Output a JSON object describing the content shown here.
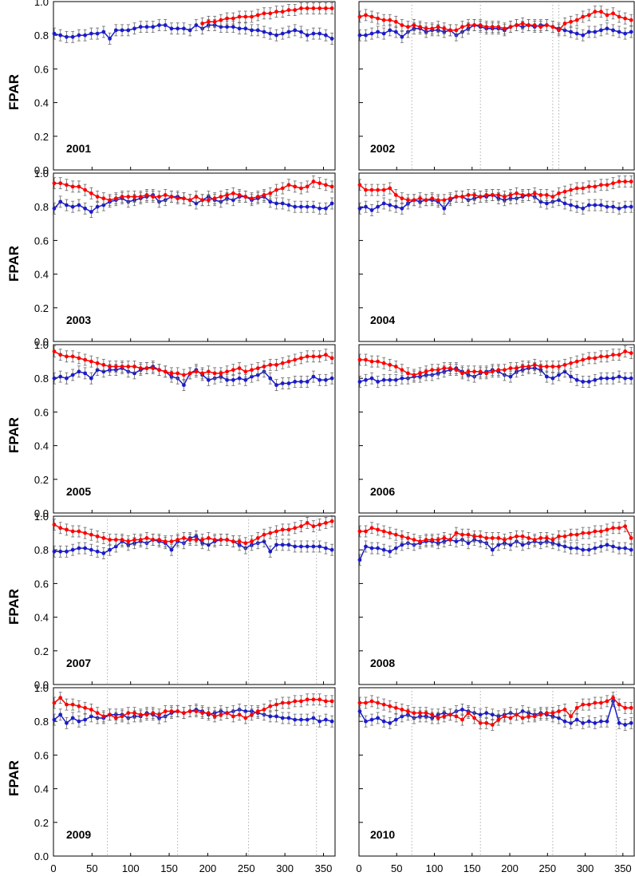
{
  "chart_data": {
    "type": "line",
    "ylabel": "FPAR",
    "ylim": [
      0.0,
      1.0
    ],
    "yticks": [
      "0.0",
      "0.2",
      "0.4",
      "0.6",
      "0.8",
      "1.0"
    ],
    "xlim": [
      0,
      365
    ],
    "xticks": [
      "0",
      "50",
      "100",
      "150",
      "200",
      "250",
      "300",
      "350"
    ],
    "x": [
      1,
      9,
      17,
      25,
      33,
      41,
      49,
      57,
      65,
      73,
      81,
      89,
      97,
      105,
      113,
      121,
      129,
      137,
      145,
      153,
      161,
      169,
      177,
      185,
      193,
      201,
      209,
      217,
      225,
      233,
      241,
      249,
      257,
      265,
      273,
      281,
      289,
      297,
      305,
      313,
      321,
      329,
      337,
      345,
      353,
      361
    ],
    "colors": {
      "red": "#ff0000",
      "blue": "#1c1cc8",
      "errorbar": "#666666",
      "guide": "#9a9a9a"
    },
    "panels": [
      {
        "year": "2001",
        "col": 0,
        "row": 0,
        "guides": [],
        "red_start": 24,
        "red": [
          0.87,
          0.88,
          0.88,
          0.89,
          0.9,
          0.9,
          0.91,
          0.91,
          0.91,
          0.92,
          0.93,
          0.93,
          0.94,
          0.94,
          0.95,
          0.95,
          0.96,
          0.96,
          0.96,
          0.96,
          0.96,
          0.96
        ],
        "blue": [
          0.81,
          0.8,
          0.79,
          0.79,
          0.8,
          0.8,
          0.81,
          0.81,
          0.82,
          0.78,
          0.83,
          0.83,
          0.83,
          0.84,
          0.85,
          0.85,
          0.85,
          0.86,
          0.86,
          0.84,
          0.84,
          0.84,
          0.83,
          0.86,
          0.84,
          0.86,
          0.86,
          0.85,
          0.85,
          0.85,
          0.84,
          0.84,
          0.83,
          0.83,
          0.82,
          0.81,
          0.8,
          0.81,
          0.82,
          0.83,
          0.82,
          0.8,
          0.81,
          0.81,
          0.8,
          0.78
        ]
      },
      {
        "year": "2002",
        "col": 1,
        "row": 0,
        "guides": [
          70,
          161,
          257,
          265
        ],
        "red_start": 0,
        "red": [
          0.91,
          0.92,
          0.91,
          0.9,
          0.89,
          0.89,
          0.88,
          0.86,
          0.85,
          0.86,
          0.85,
          0.84,
          0.84,
          0.85,
          0.84,
          0.83,
          0.83,
          0.85,
          0.86,
          0.86,
          0.86,
          0.85,
          0.85,
          0.85,
          0.84,
          0.85,
          0.86,
          0.87,
          0.86,
          0.86,
          0.85,
          0.86,
          0.85,
          0.83,
          0.87,
          0.88,
          0.89,
          0.91,
          0.92,
          0.94,
          0.94,
          0.92,
          0.93,
          0.91,
          0.9,
          0.89
        ],
        "blue": [
          0.8,
          0.8,
          0.81,
          0.82,
          0.81,
          0.83,
          0.82,
          0.79,
          0.82,
          0.84,
          0.84,
          0.82,
          0.83,
          0.83,
          0.82,
          0.83,
          0.8,
          0.82,
          0.84,
          0.86,
          0.85,
          0.84,
          0.84,
          0.84,
          0.83,
          0.85,
          0.86,
          0.85,
          0.86,
          0.85,
          0.86,
          0.86,
          0.85,
          0.84,
          0.83,
          0.82,
          0.81,
          0.8,
          0.82,
          0.82,
          0.83,
          0.84,
          0.83,
          0.82,
          0.81,
          0.82
        ]
      },
      {
        "year": "2003",
        "col": 0,
        "row": 1,
        "guides": [],
        "red_start": 0,
        "red": [
          0.94,
          0.94,
          0.93,
          0.92,
          0.92,
          0.9,
          0.88,
          0.86,
          0.85,
          0.84,
          0.85,
          0.86,
          0.86,
          0.86,
          0.86,
          0.87,
          0.86,
          0.86,
          0.87,
          0.86,
          0.85,
          0.85,
          0.84,
          0.86,
          0.84,
          0.84,
          0.85,
          0.86,
          0.87,
          0.88,
          0.87,
          0.86,
          0.85,
          0.86,
          0.87,
          0.88,
          0.9,
          0.91,
          0.93,
          0.92,
          0.91,
          0.92,
          0.95,
          0.94,
          0.93,
          0.92
        ],
        "blue": [
          0.79,
          0.83,
          0.81,
          0.8,
          0.81,
          0.79,
          0.77,
          0.8,
          0.81,
          0.83,
          0.84,
          0.85,
          0.83,
          0.84,
          0.85,
          0.86,
          0.87,
          0.83,
          0.84,
          0.86,
          0.86,
          0.85,
          0.84,
          0.82,
          0.84,
          0.86,
          0.84,
          0.83,
          0.85,
          0.84,
          0.86,
          0.86,
          0.84,
          0.85,
          0.86,
          0.83,
          0.82,
          0.82,
          0.81,
          0.8,
          0.8,
          0.8,
          0.8,
          0.79,
          0.79,
          0.82
        ]
      },
      {
        "year": "2004",
        "col": 1,
        "row": 1,
        "guides": [],
        "red_start": 0,
        "red": [
          0.93,
          0.9,
          0.9,
          0.9,
          0.9,
          0.91,
          0.87,
          0.85,
          0.84,
          0.84,
          0.85,
          0.84,
          0.85,
          0.84,
          0.84,
          0.85,
          0.86,
          0.86,
          0.87,
          0.87,
          0.86,
          0.87,
          0.87,
          0.87,
          0.86,
          0.87,
          0.88,
          0.87,
          0.87,
          0.88,
          0.87,
          0.87,
          0.86,
          0.88,
          0.89,
          0.9,
          0.91,
          0.91,
          0.92,
          0.92,
          0.93,
          0.93,
          0.94,
          0.95,
          0.95,
          0.95
        ],
        "blue": [
          0.79,
          0.8,
          0.78,
          0.8,
          0.82,
          0.81,
          0.8,
          0.79,
          0.82,
          0.84,
          0.83,
          0.84,
          0.84,
          0.83,
          0.79,
          0.84,
          0.86,
          0.86,
          0.84,
          0.85,
          0.86,
          0.86,
          0.87,
          0.85,
          0.84,
          0.85,
          0.85,
          0.86,
          0.87,
          0.86,
          0.83,
          0.82,
          0.83,
          0.84,
          0.82,
          0.81,
          0.8,
          0.79,
          0.81,
          0.81,
          0.81,
          0.8,
          0.8,
          0.79,
          0.8,
          0.8
        ]
      },
      {
        "year": "2005",
        "col": 0,
        "row": 2,
        "guides": [],
        "red_start": 0,
        "red": [
          0.96,
          0.94,
          0.93,
          0.93,
          0.92,
          0.91,
          0.9,
          0.89,
          0.88,
          0.87,
          0.87,
          0.87,
          0.87,
          0.87,
          0.86,
          0.86,
          0.86,
          0.85,
          0.84,
          0.83,
          0.83,
          0.82,
          0.83,
          0.84,
          0.83,
          0.84,
          0.83,
          0.83,
          0.84,
          0.85,
          0.86,
          0.84,
          0.85,
          0.86,
          0.87,
          0.88,
          0.88,
          0.89,
          0.9,
          0.91,
          0.92,
          0.93,
          0.93,
          0.93,
          0.94,
          0.92
        ],
        "blue": [
          0.8,
          0.81,
          0.8,
          0.82,
          0.84,
          0.83,
          0.8,
          0.85,
          0.84,
          0.85,
          0.85,
          0.86,
          0.84,
          0.83,
          0.85,
          0.86,
          0.87,
          0.85,
          0.84,
          0.81,
          0.8,
          0.76,
          0.83,
          0.85,
          0.82,
          0.79,
          0.8,
          0.81,
          0.79,
          0.79,
          0.8,
          0.79,
          0.81,
          0.82,
          0.84,
          0.8,
          0.76,
          0.77,
          0.77,
          0.78,
          0.78,
          0.78,
          0.81,
          0.79,
          0.79,
          0.8
        ]
      },
      {
        "year": "2006",
        "col": 1,
        "row": 2,
        "guides": [],
        "red_start": 0,
        "red": [
          0.91,
          0.91,
          0.9,
          0.9,
          0.89,
          0.88,
          0.87,
          0.85,
          0.83,
          0.82,
          0.83,
          0.84,
          0.85,
          0.85,
          0.86,
          0.86,
          0.85,
          0.83,
          0.84,
          0.84,
          0.84,
          0.83,
          0.84,
          0.85,
          0.85,
          0.86,
          0.86,
          0.87,
          0.87,
          0.88,
          0.87,
          0.87,
          0.87,
          0.87,
          0.88,
          0.89,
          0.9,
          0.91,
          0.92,
          0.92,
          0.93,
          0.93,
          0.94,
          0.94,
          0.96,
          0.95
        ],
        "blue": [
          0.78,
          0.79,
          0.8,
          0.78,
          0.79,
          0.79,
          0.79,
          0.8,
          0.8,
          0.81,
          0.81,
          0.82,
          0.82,
          0.83,
          0.84,
          0.85,
          0.86,
          0.84,
          0.82,
          0.81,
          0.83,
          0.84,
          0.85,
          0.84,
          0.82,
          0.81,
          0.84,
          0.85,
          0.86,
          0.86,
          0.85,
          0.81,
          0.8,
          0.82,
          0.84,
          0.81,
          0.79,
          0.78,
          0.78,
          0.79,
          0.8,
          0.8,
          0.8,
          0.81,
          0.8,
          0.8
        ]
      },
      {
        "year": "2007",
        "col": 0,
        "row": 3,
        "guides": [
          70,
          161,
          253,
          341
        ],
        "red_start": 0,
        "red": [
          0.95,
          0.93,
          0.92,
          0.91,
          0.91,
          0.9,
          0.89,
          0.88,
          0.87,
          0.86,
          0.86,
          0.86,
          0.85,
          0.86,
          0.86,
          0.87,
          0.86,
          0.86,
          0.85,
          0.85,
          0.86,
          0.87,
          0.86,
          0.86,
          0.86,
          0.87,
          0.86,
          0.86,
          0.86,
          0.85,
          0.85,
          0.84,
          0.85,
          0.87,
          0.89,
          0.9,
          0.91,
          0.92,
          0.92,
          0.93,
          0.94,
          0.96,
          0.94,
          0.95,
          0.96,
          0.97
        ],
        "blue": [
          0.79,
          0.79,
          0.79,
          0.8,
          0.81,
          0.81,
          0.8,
          0.79,
          0.78,
          0.8,
          0.82,
          0.85,
          0.83,
          0.84,
          0.85,
          0.84,
          0.86,
          0.85,
          0.84,
          0.8,
          0.85,
          0.84,
          0.87,
          0.88,
          0.84,
          0.83,
          0.85,
          0.86,
          0.86,
          0.85,
          0.83,
          0.81,
          0.83,
          0.84,
          0.85,
          0.79,
          0.83,
          0.83,
          0.83,
          0.82,
          0.82,
          0.82,
          0.82,
          0.82,
          0.81,
          0.8
        ]
      },
      {
        "year": "2008",
        "col": 1,
        "row": 3,
        "guides": [],
        "red_start": 0,
        "red": [
          0.91,
          0.91,
          0.93,
          0.92,
          0.91,
          0.9,
          0.89,
          0.88,
          0.87,
          0.86,
          0.85,
          0.86,
          0.86,
          0.86,
          0.87,
          0.86,
          0.9,
          0.89,
          0.89,
          0.88,
          0.88,
          0.87,
          0.87,
          0.87,
          0.86,
          0.87,
          0.88,
          0.88,
          0.87,
          0.86,
          0.87,
          0.87,
          0.86,
          0.88,
          0.88,
          0.89,
          0.89,
          0.9,
          0.9,
          0.91,
          0.91,
          0.92,
          0.93,
          0.93,
          0.94,
          0.87
        ],
        "blue": [
          0.74,
          0.82,
          0.81,
          0.81,
          0.8,
          0.79,
          0.81,
          0.83,
          0.84,
          0.83,
          0.84,
          0.85,
          0.85,
          0.84,
          0.85,
          0.86,
          0.85,
          0.86,
          0.84,
          0.86,
          0.85,
          0.84,
          0.8,
          0.83,
          0.84,
          0.83,
          0.85,
          0.83,
          0.84,
          0.85,
          0.84,
          0.85,
          0.84,
          0.83,
          0.82,
          0.81,
          0.81,
          0.8,
          0.8,
          0.81,
          0.82,
          0.83,
          0.82,
          0.81,
          0.81,
          0.8
        ]
      },
      {
        "year": "2009",
        "col": 0,
        "row": 4,
        "guides": [
          70,
          161,
          253,
          341
        ],
        "red_start": 0,
        "red": [
          0.91,
          0.94,
          0.9,
          0.9,
          0.89,
          0.88,
          0.87,
          0.85,
          0.83,
          0.84,
          0.82,
          0.83,
          0.85,
          0.85,
          0.84,
          0.84,
          0.85,
          0.84,
          0.86,
          0.86,
          0.86,
          0.85,
          0.86,
          0.86,
          0.85,
          0.85,
          0.83,
          0.84,
          0.85,
          0.83,
          0.84,
          0.82,
          0.84,
          0.86,
          0.87,
          0.89,
          0.9,
          0.91,
          0.91,
          0.92,
          0.92,
          0.93,
          0.93,
          0.93,
          0.92,
          0.92
        ],
        "blue": [
          0.81,
          0.84,
          0.79,
          0.82,
          0.8,
          0.81,
          0.83,
          0.82,
          0.82,
          0.84,
          0.84,
          0.84,
          0.82,
          0.83,
          0.83,
          0.85,
          0.84,
          0.82,
          0.83,
          0.85,
          0.86,
          0.85,
          0.86,
          0.87,
          0.86,
          0.84,
          0.85,
          0.86,
          0.85,
          0.86,
          0.87,
          0.86,
          0.86,
          0.85,
          0.84,
          0.83,
          0.83,
          0.82,
          0.82,
          0.81,
          0.81,
          0.81,
          0.82,
          0.8,
          0.81,
          0.8
        ]
      },
      {
        "year": "2010",
        "col": 1,
        "row": 4,
        "guides": [
          70,
          161,
          257,
          341
        ],
        "red_start": 0,
        "red": [
          0.91,
          0.91,
          0.92,
          0.91,
          0.9,
          0.89,
          0.88,
          0.87,
          0.86,
          0.85,
          0.85,
          0.85,
          0.84,
          0.82,
          0.83,
          0.84,
          0.83,
          0.81,
          0.85,
          0.82,
          0.79,
          0.79,
          0.78,
          0.81,
          0.83,
          0.82,
          0.84,
          0.82,
          0.83,
          0.83,
          0.84,
          0.85,
          0.85,
          0.86,
          0.87,
          0.83,
          0.88,
          0.9,
          0.9,
          0.91,
          0.91,
          0.92,
          0.94,
          0.9,
          0.88,
          0.88
        ],
        "blue": [
          0.86,
          0.8,
          0.81,
          0.82,
          0.8,
          0.79,
          0.81,
          0.83,
          0.84,
          0.82,
          0.83,
          0.83,
          0.82,
          0.84,
          0.85,
          0.84,
          0.86,
          0.87,
          0.86,
          0.85,
          0.84,
          0.85,
          0.84,
          0.83,
          0.84,
          0.85,
          0.84,
          0.86,
          0.85,
          0.84,
          0.85,
          0.84,
          0.83,
          0.82,
          0.8,
          0.79,
          0.81,
          0.79,
          0.8,
          0.79,
          0.8,
          0.8,
          0.92,
          0.79,
          0.78,
          0.79
        ]
      }
    ]
  }
}
